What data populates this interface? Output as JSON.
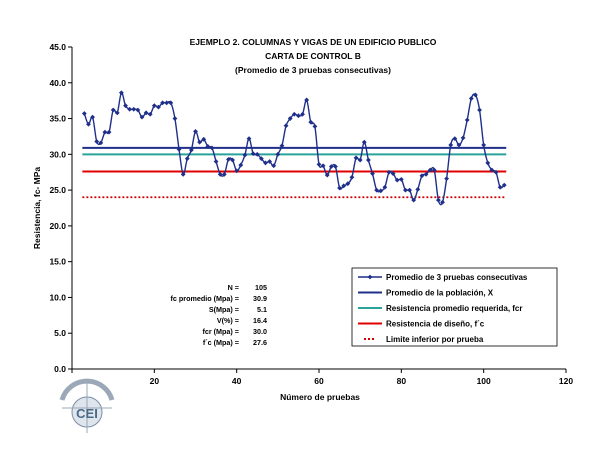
{
  "chart_data": {
    "type": "line",
    "title": "EJEMPLO 2.  COLUMNAS Y VIGAS DE UN EDIFICIO PUBLICO",
    "subtitle": "CARTA DE CONTROL B",
    "subtitle2": "(Promedio de 3 pruebas consecutivas)",
    "xlabel": "Número de pruebas",
    "ylabel": "Resistencia, fc- MPa",
    "xlim": [
      0,
      120
    ],
    "ylim": [
      0,
      45
    ],
    "xticks": [
      0,
      20,
      40,
      60,
      80,
      100,
      120
    ],
    "yticks": [
      0,
      5,
      10,
      15,
      20,
      25,
      30,
      35,
      40,
      45
    ],
    "xtick_labels": [
      "0",
      "20",
      "40",
      "60",
      "80",
      "100",
      "120"
    ],
    "ytick_labels": [
      "0.0",
      "5.0",
      "10.0",
      "15.0",
      "20.0",
      "25.0",
      "30.0",
      "35.0",
      "40.0",
      "45.0"
    ],
    "grid": false,
    "legend_position": "bottom-right",
    "series": [
      {
        "name": "Promedio de 3 pruebas consecutivas",
        "color": "#1f2f8a",
        "marker": "diamond",
        "x": [
          3,
          4,
          5,
          6,
          7,
          8,
          9,
          10,
          11,
          12,
          13,
          14,
          15,
          16,
          17,
          18,
          19,
          20,
          21,
          22,
          23,
          24,
          25,
          26,
          27,
          28,
          29,
          30,
          31,
          32,
          33,
          34,
          35,
          36,
          37,
          38,
          39,
          40,
          41,
          42,
          43,
          44,
          45,
          46,
          47,
          48,
          49,
          50,
          51,
          52,
          53,
          54,
          55,
          56,
          57,
          58,
          59,
          60,
          61,
          62,
          63,
          64,
          65,
          66,
          67,
          68,
          69,
          70,
          71,
          72,
          73,
          74,
          75,
          76,
          77,
          78,
          79,
          80,
          81,
          82,
          83,
          84,
          85,
          86,
          87,
          88,
          89,
          90,
          91,
          92,
          93,
          94,
          95,
          96,
          97,
          98,
          99,
          100,
          101,
          102,
          103,
          104,
          105
        ],
        "y": [
          35.7,
          34.2,
          35.2,
          31.8,
          31.6,
          33.1,
          33.1,
          36.2,
          35.8,
          38.6,
          36.8,
          36.3,
          36.3,
          36.2,
          35.2,
          35.8,
          35.6,
          36.8,
          36.6,
          37.2,
          37.2,
          37.2,
          35.0,
          30.7,
          27.2,
          29.4,
          30.6,
          33.2,
          31.7,
          32.1,
          31.1,
          30.9,
          29.0,
          27.2,
          27.2,
          29.3,
          29.2,
          27.7,
          28.5,
          29.9,
          32.2,
          30.1,
          30.0,
          29.4,
          28.8,
          29.0,
          28.4,
          30.0,
          31.2,
          34.0,
          35.0,
          35.6,
          35.4,
          35.6,
          37.6,
          34.5,
          33.9,
          28.6,
          28.4,
          27.1,
          28.3,
          28.3,
          25.3,
          25.6,
          25.9,
          26.8,
          29.5,
          29.2,
          31.7,
          29.2,
          27.3,
          25.0,
          24.9,
          25.4,
          27.5,
          27.3,
          26.4,
          26.5,
          25.0,
          25.0,
          23.6,
          25.1,
          27.0,
          27.2,
          27.8,
          27.8,
          23.6,
          23.3,
          26.6,
          31.3,
          32.2,
          31.3,
          32.3,
          34.8,
          37.8,
          38.3,
          36.2,
          31.3,
          28.8,
          27.8,
          27.5,
          25.4,
          25.7
        ]
      },
      {
        "name": "Promedio de la población, X",
        "color": "#1f2f8a",
        "value": 30.9
      },
      {
        "name": "Resistencia promedio requerida, fcr",
        "color": "#2aa39a",
        "value": 30.0
      },
      {
        "name": "Resistencia de diseño, f´c",
        "color": "#e00000",
        "value": 27.6
      },
      {
        "name": "Limite inferior por prueba",
        "color": "#cc0000",
        "dashed": true,
        "value": 24.0
      }
    ],
    "stats": [
      {
        "label": "N =",
        "value": "105"
      },
      {
        "label": "fc promedio (Mpa) =",
        "value": "30.9"
      },
      {
        "label": "S(Mpa) =",
        "value": "5.1"
      },
      {
        "label": "V(%) =",
        "value": "16.4"
      },
      {
        "label": "fcr (Mpa) =",
        "value": "30.0"
      },
      {
        "label": "f´c (Mpa) =",
        "value": "27.6"
      }
    ]
  },
  "logo": {
    "text": "CEI",
    "color": "#4a6a8a"
  }
}
